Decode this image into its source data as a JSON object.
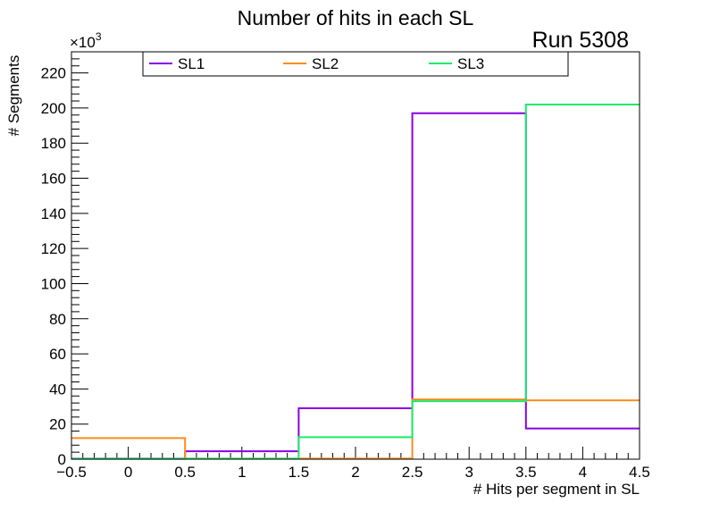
{
  "chart_data": {
    "type": "histogram-step",
    "title": "Number of hits in each SL",
    "annotation": "Run 5308",
    "xlabel": "# Hits per segment in SL",
    "ylabel": "# Segments",
    "y_multiplier": "×10",
    "y_multiplier_exponent": "3",
    "xlim": [
      -0.5,
      4.5
    ],
    "ylim": [
      0,
      232
    ],
    "bin_edges": [
      -0.5,
      0.5,
      1.5,
      2.5,
      3.5,
      4.5
    ],
    "x_ticks": [
      -0.5,
      0,
      0.5,
      1,
      1.5,
      2,
      2.5,
      3,
      3.5,
      4,
      4.5
    ],
    "x_tick_labels": [
      "−0.5",
      "0",
      "0.5",
      "1",
      "1.5",
      "2",
      "2.5",
      "3",
      "3.5",
      "4",
      "4.5"
    ],
    "y_ticks": [
      0,
      20,
      40,
      60,
      80,
      100,
      120,
      140,
      160,
      180,
      200,
      220
    ],
    "y_tick_labels": [
      "0",
      "20",
      "40",
      "60",
      "80",
      "100",
      "120",
      "140",
      "160",
      "180",
      "200",
      "220"
    ],
    "legend_position": "top",
    "series": [
      {
        "name": "SL1",
        "color": "#8a00e6",
        "values": [
          0.3,
          4.5,
          29,
          197,
          17.5
        ]
      },
      {
        "name": "SL2",
        "color": "#ff8c1a",
        "values": [
          12,
          0.3,
          0.3,
          34,
          33.5
        ]
      },
      {
        "name": "SL3",
        "color": "#1aeb6b",
        "values": [
          0.2,
          0.3,
          12.5,
          33,
          202
        ]
      }
    ]
  }
}
